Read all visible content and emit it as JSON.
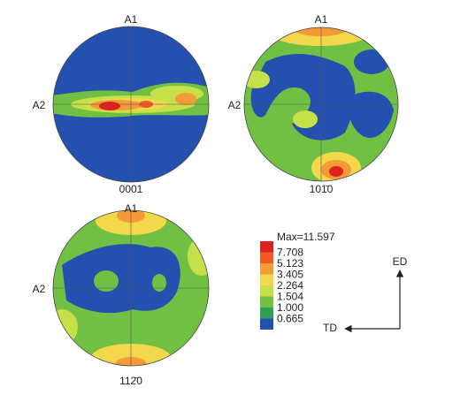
{
  "pole_figures": [
    {
      "top_label": "A1",
      "left_label": "A2",
      "label": "0001"
    },
    {
      "top_label": "A1",
      "left_label": "A2",
      "label": "101̄0"
    },
    {
      "top_label": "A1",
      "left_label": "A2",
      "label": "112̄0"
    }
  ],
  "legend": {
    "max_label": "Max=11.597",
    "levels": [
      "7.708",
      "5.123",
      "3.405",
      "2.264",
      "1.504",
      "1.000",
      "0.665"
    ],
    "colors": [
      "#e0201c",
      "#f05a28",
      "#f59a38",
      "#f2d84a",
      "#c6e04a",
      "#72c043",
      "#2f9f55",
      "#2450b0"
    ]
  },
  "axes": {
    "vertical": "ED",
    "horizontal": "TD"
  }
}
